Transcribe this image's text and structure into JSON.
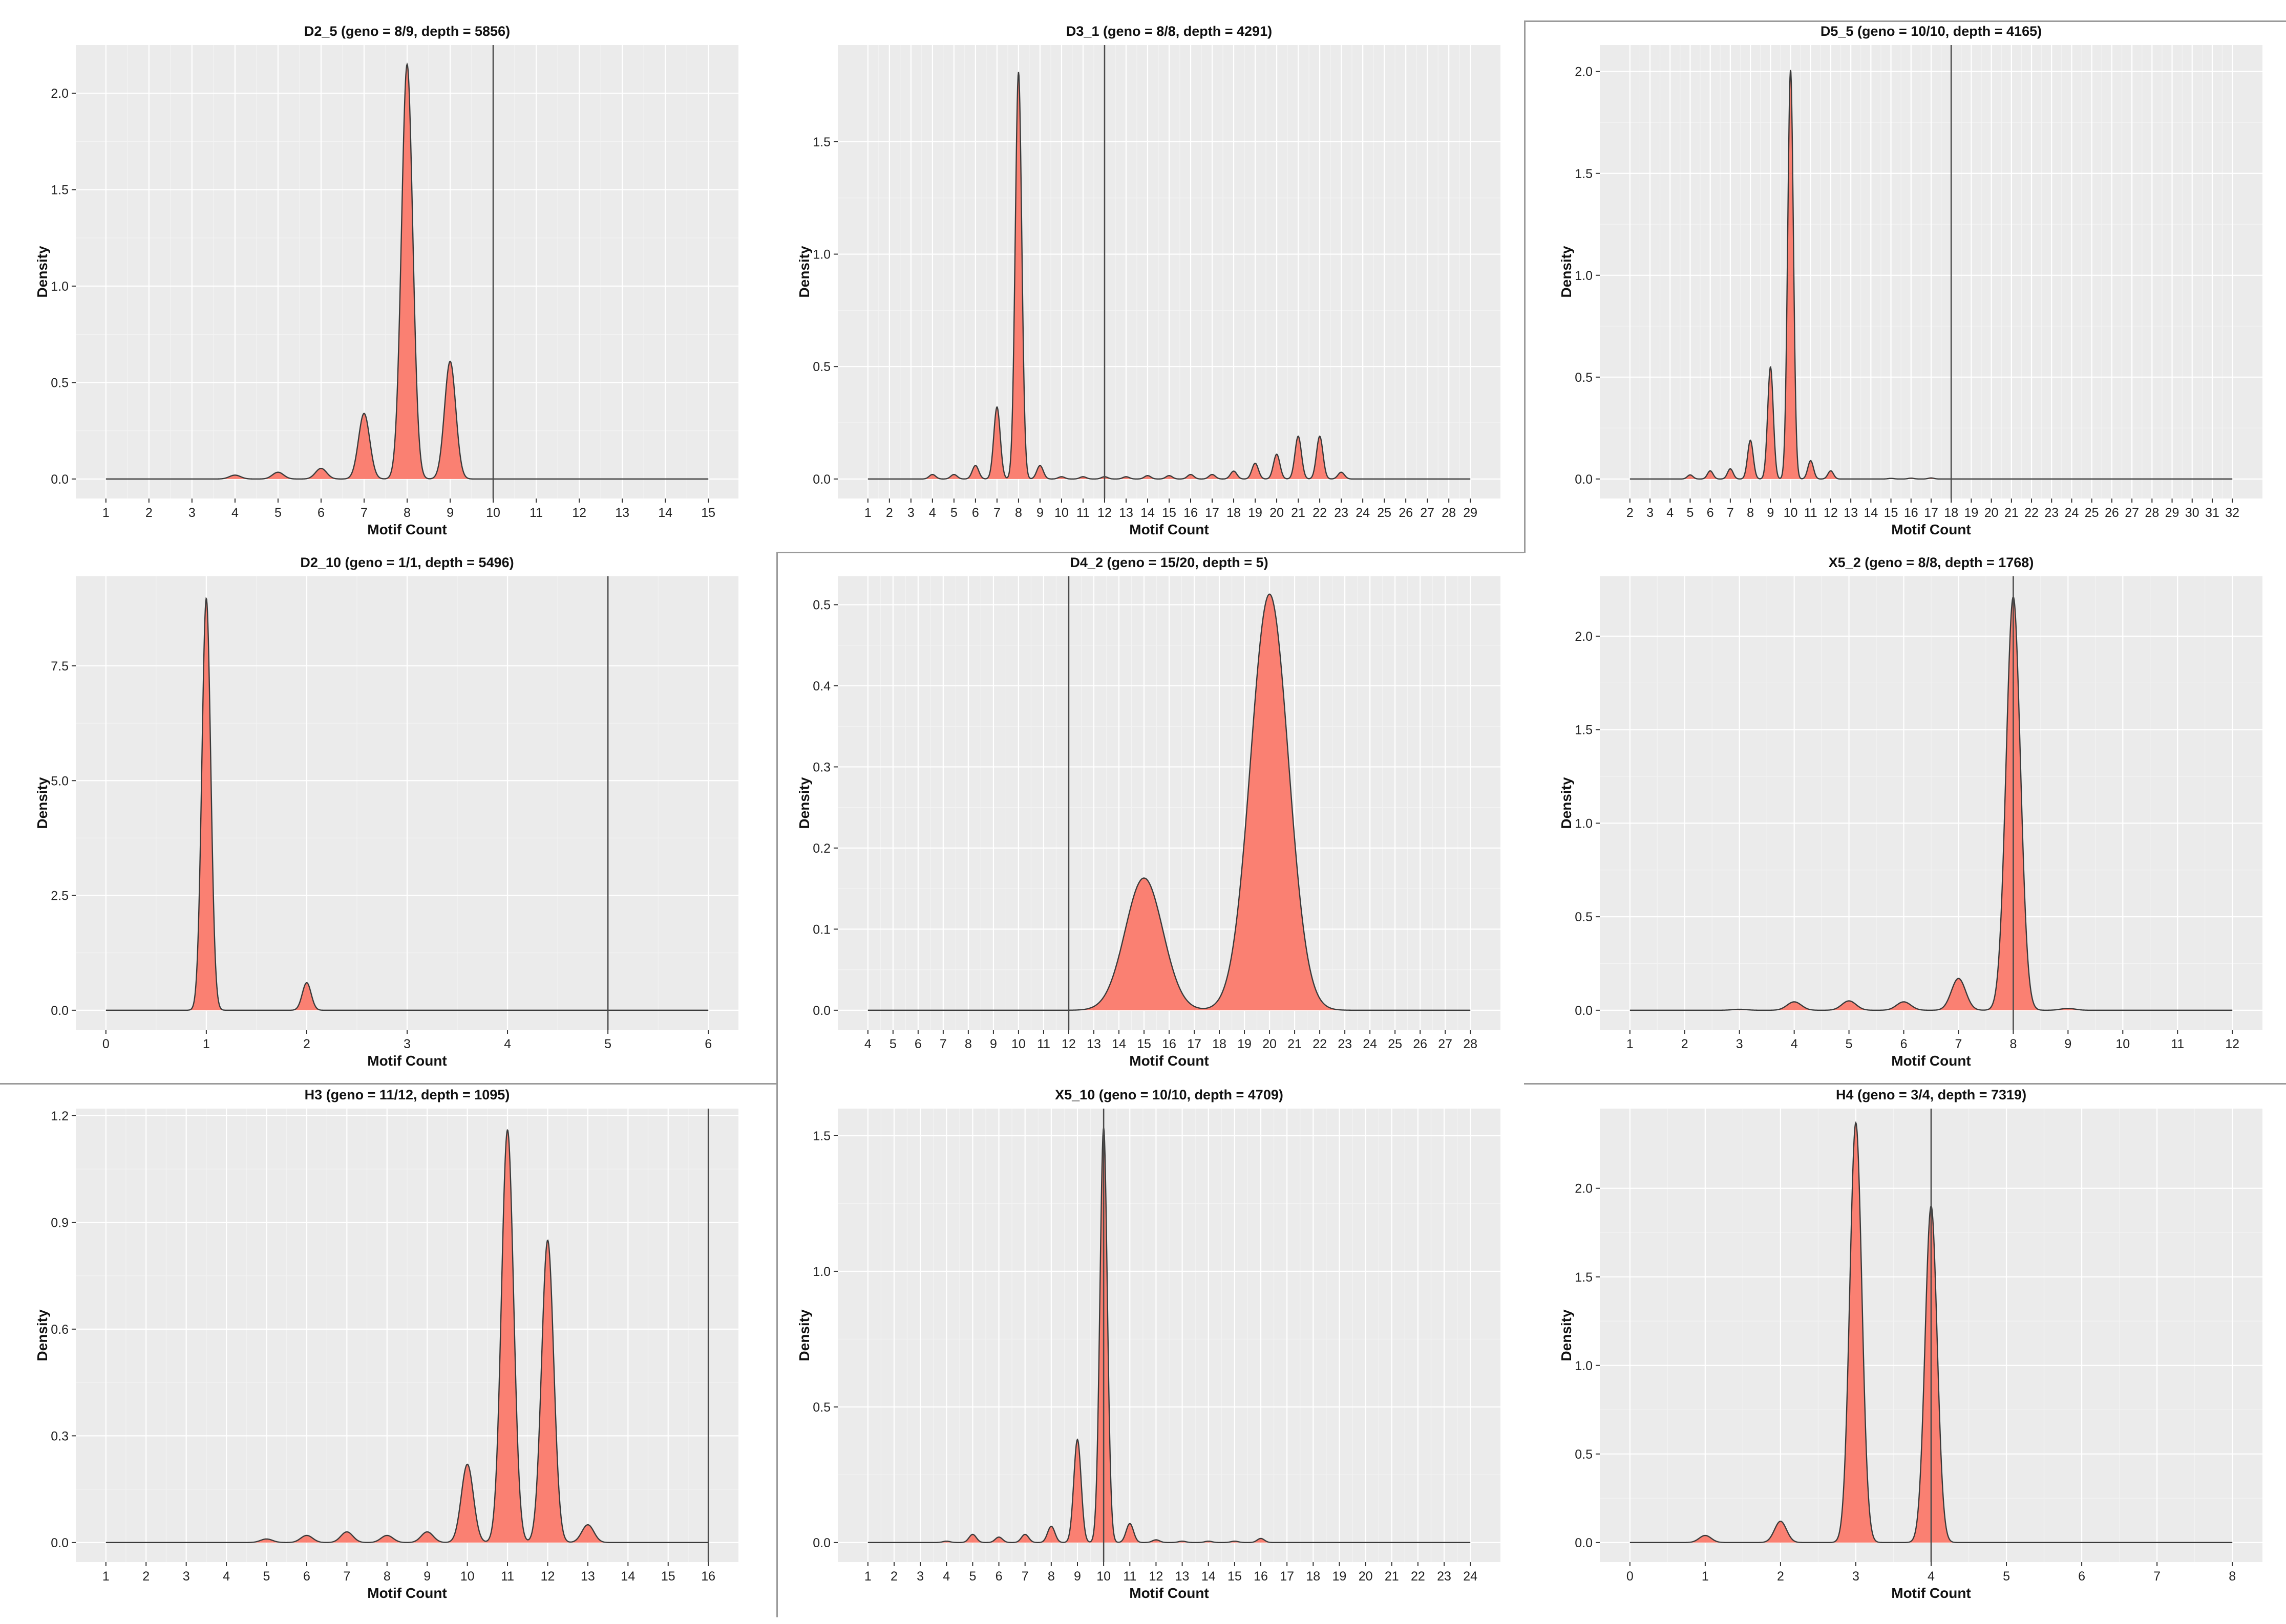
{
  "figure": {
    "background": "#ffffff",
    "panel_background": "#ebebeb",
    "grid_major": "#ffffff",
    "grid_minor": "#f3f3f3",
    "fill": "#fa8072",
    "stroke": "#3a3a3a",
    "vline": "#4a4a4a"
  },
  "chart_data": [
    {
      "type": "area",
      "title": "D2_5 (geno = 8/9, depth = 5856)",
      "xlabel": "Motif Count",
      "ylabel": "Density",
      "xlim": [
        1,
        15
      ],
      "ylim": [
        0,
        2.25
      ],
      "xticks": [
        1,
        2,
        3,
        4,
        5,
        6,
        7,
        8,
        9,
        10,
        11,
        12,
        13,
        14,
        15
      ],
      "yticks": [
        0.0,
        0.5,
        1.0,
        1.5,
        2.0
      ],
      "ytick_decimals": 1,
      "vline": 10,
      "sigma": 0.13,
      "peaks": [
        {
          "x": 4,
          "y": 0.02
        },
        {
          "x": 5,
          "y": 0.035
        },
        {
          "x": 6,
          "y": 0.055
        },
        {
          "x": 7,
          "y": 0.34
        },
        {
          "x": 8,
          "y": 2.15
        },
        {
          "x": 9,
          "y": 0.61
        }
      ]
    },
    {
      "type": "area",
      "title": "D3_1 (geno = 8/8, depth = 4291)",
      "xlabel": "Motif Count",
      "ylabel": "Density",
      "xlim": [
        1,
        29
      ],
      "ylim": [
        0,
        1.93
      ],
      "xticks": [
        1,
        2,
        3,
        4,
        5,
        6,
        7,
        8,
        9,
        10,
        11,
        12,
        13,
        14,
        15,
        16,
        17,
        18,
        19,
        20,
        21,
        22,
        23,
        24,
        25,
        26,
        27,
        28,
        29
      ],
      "yticks": [
        0.0,
        0.5,
        1.0,
        1.5
      ],
      "ytick_decimals": 1,
      "vline": 12,
      "sigma": 0.15,
      "peaks": [
        {
          "x": 4,
          "y": 0.02
        },
        {
          "x": 5,
          "y": 0.02
        },
        {
          "x": 6,
          "y": 0.06
        },
        {
          "x": 7,
          "y": 0.32
        },
        {
          "x": 8,
          "y": 1.81
        },
        {
          "x": 9,
          "y": 0.06
        },
        {
          "x": 10,
          "y": 0.01
        },
        {
          "x": 11,
          "y": 0.01
        },
        {
          "x": 12,
          "y": 0.01
        },
        {
          "x": 13,
          "y": 0.01
        },
        {
          "x": 14,
          "y": 0.015
        },
        {
          "x": 15,
          "y": 0.015
        },
        {
          "x": 16,
          "y": 0.02
        },
        {
          "x": 17,
          "y": 0.02
        },
        {
          "x": 18,
          "y": 0.035
        },
        {
          "x": 19,
          "y": 0.07
        },
        {
          "x": 20,
          "y": 0.11
        },
        {
          "x": 21,
          "y": 0.19
        },
        {
          "x": 22,
          "y": 0.19
        },
        {
          "x": 23,
          "y": 0.03
        }
      ]
    },
    {
      "type": "area",
      "title": "D5_5 (geno = 10/10, depth = 4165)",
      "xlabel": "Motif Count",
      "ylabel": "Density",
      "xlim": [
        2,
        32
      ],
      "ylim": [
        0,
        2.13
      ],
      "xticks": [
        2,
        3,
        4,
        5,
        6,
        7,
        8,
        9,
        10,
        11,
        12,
        13,
        14,
        15,
        16,
        17,
        18,
        19,
        20,
        21,
        22,
        23,
        24,
        25,
        26,
        27,
        28,
        29,
        30,
        31,
        32
      ],
      "yticks": [
        0.0,
        0.5,
        1.0,
        1.5,
        2.0
      ],
      "ytick_decimals": 1,
      "vline": 18,
      "sigma": 0.14,
      "peaks": [
        {
          "x": 5,
          "y": 0.02
        },
        {
          "x": 6,
          "y": 0.04
        },
        {
          "x": 7,
          "y": 0.05
        },
        {
          "x": 8,
          "y": 0.19
        },
        {
          "x": 9,
          "y": 0.55
        },
        {
          "x": 10,
          "y": 2.01
        },
        {
          "x": 11,
          "y": 0.09
        },
        {
          "x": 12,
          "y": 0.04
        },
        {
          "x": 15,
          "y": 0.003
        },
        {
          "x": 16,
          "y": 0.004
        },
        {
          "x": 17,
          "y": 0.005
        }
      ]
    },
    {
      "type": "area",
      "title": "D2_10 (geno = 1/1, depth = 5496)",
      "xlabel": "Motif Count",
      "ylabel": "Density",
      "xlim": [
        0,
        6
      ],
      "ylim": [
        0,
        9.45
      ],
      "xticks": [
        0,
        1,
        2,
        3,
        4,
        5,
        6
      ],
      "yticks": [
        0.0,
        2.5,
        5.0,
        7.5
      ],
      "ytick_decimals": 1,
      "vline": 5,
      "sigma": 0.044,
      "peaks": [
        {
          "x": 1,
          "y": 8.97
        },
        {
          "x": 2,
          "y": 0.6
        }
      ]
    },
    {
      "type": "area",
      "title": "D4_2 (geno = 15/20, depth = 5)",
      "xlabel": "Motif Count",
      "ylabel": "Density",
      "xlim": [
        4,
        28
      ],
      "ylim": [
        0,
        0.535
      ],
      "xticks": [
        4,
        5,
        6,
        7,
        8,
        9,
        10,
        11,
        12,
        13,
        14,
        15,
        16,
        17,
        18,
        19,
        20,
        21,
        22,
        23,
        24,
        25,
        26,
        27,
        28
      ],
      "yticks": [
        0.0,
        0.1,
        0.2,
        0.3,
        0.4,
        0.5
      ],
      "ytick_decimals": 1,
      "vline": 12,
      "sigma": 0.75,
      "peaks": [
        {
          "x": 15,
          "y": 0.163
        },
        {
          "x": 20,
          "y": 0.513
        }
      ]
    },
    {
      "type": "area",
      "title": "X5_2 (geno = 8/8, depth = 1768)",
      "xlabel": "Motif Count",
      "ylabel": "Density",
      "xlim": [
        1,
        12
      ],
      "ylim": [
        0,
        2.32
      ],
      "xticks": [
        1,
        2,
        3,
        4,
        5,
        6,
        7,
        8,
        9,
        10,
        11,
        12
      ],
      "yticks": [
        0.0,
        0.5,
        1.0,
        1.5,
        2.0
      ],
      "ytick_decimals": 1,
      "vline": 8,
      "sigma": 0.13,
      "peaks": [
        {
          "x": 3,
          "y": 0.005
        },
        {
          "x": 4,
          "y": 0.045
        },
        {
          "x": 5,
          "y": 0.05
        },
        {
          "x": 6,
          "y": 0.045
        },
        {
          "x": 7,
          "y": 0.17
        },
        {
          "x": 8,
          "y": 2.21
        },
        {
          "x": 9,
          "y": 0.01
        }
      ]
    },
    {
      "type": "area",
      "title": "H3 (geno = 11/12, depth = 1095)",
      "xlabel": "Motif Count",
      "ylabel": "Density",
      "xlim": [
        1,
        16
      ],
      "ylim": [
        0,
        1.22
      ],
      "xticks": [
        1,
        2,
        3,
        4,
        5,
        6,
        7,
        8,
        9,
        10,
        11,
        12,
        13,
        14,
        15,
        16
      ],
      "yticks": [
        0.0,
        0.3,
        0.6,
        0.9,
        1.2
      ],
      "ytick_decimals": 1,
      "vline": 16,
      "sigma": 0.15,
      "peaks": [
        {
          "x": 5,
          "y": 0.01
        },
        {
          "x": 6,
          "y": 0.02
        },
        {
          "x": 7,
          "y": 0.03
        },
        {
          "x": 8,
          "y": 0.02
        },
        {
          "x": 9,
          "y": 0.03
        },
        {
          "x": 10,
          "y": 0.22
        },
        {
          "x": 11,
          "y": 1.16
        },
        {
          "x": 12,
          "y": 0.85
        },
        {
          "x": 13,
          "y": 0.05
        }
      ]
    },
    {
      "type": "area",
      "title": "X5_10 (geno = 10/10, depth = 4709)",
      "xlabel": "Motif Count",
      "ylabel": "Density",
      "xlim": [
        1,
        24
      ],
      "ylim": [
        0,
        1.6
      ],
      "xticks": [
        1,
        2,
        3,
        4,
        5,
        6,
        7,
        8,
        9,
        10,
        11,
        12,
        13,
        14,
        15,
        16,
        17,
        18,
        19,
        20,
        21,
        22,
        23,
        24
      ],
      "yticks": [
        0.0,
        0.5,
        1.0,
        1.5
      ],
      "ytick_decimals": 1,
      "vline": 10,
      "sigma": 0.14,
      "peaks": [
        {
          "x": 4,
          "y": 0.005
        },
        {
          "x": 5,
          "y": 0.03
        },
        {
          "x": 6,
          "y": 0.02
        },
        {
          "x": 7,
          "y": 0.03
        },
        {
          "x": 8,
          "y": 0.06
        },
        {
          "x": 9,
          "y": 0.38
        },
        {
          "x": 10,
          "y": 1.53
        },
        {
          "x": 11,
          "y": 0.07
        },
        {
          "x": 12,
          "y": 0.01
        },
        {
          "x": 13,
          "y": 0.005
        },
        {
          "x": 14,
          "y": 0.005
        },
        {
          "x": 15,
          "y": 0.005
        },
        {
          "x": 16,
          "y": 0.015
        }
      ]
    },
    {
      "type": "area",
      "title": "H4 (geno = 3/4, depth = 7319)",
      "xlabel": "Motif Count",
      "ylabel": "Density",
      "xlim": [
        0,
        8
      ],
      "ylim": [
        0,
        2.45
      ],
      "xticks": [
        0,
        1,
        2,
        3,
        4,
        5,
        6,
        7,
        8
      ],
      "yticks": [
        0.0,
        0.5,
        1.0,
        1.5,
        2.0
      ],
      "ytick_decimals": 1,
      "vline": 4,
      "sigma": 0.08,
      "peaks": [
        {
          "x": 1,
          "y": 0.04
        },
        {
          "x": 2,
          "y": 0.12
        },
        {
          "x": 3,
          "y": 2.37
        },
        {
          "x": 4,
          "y": 1.9
        }
      ]
    }
  ]
}
